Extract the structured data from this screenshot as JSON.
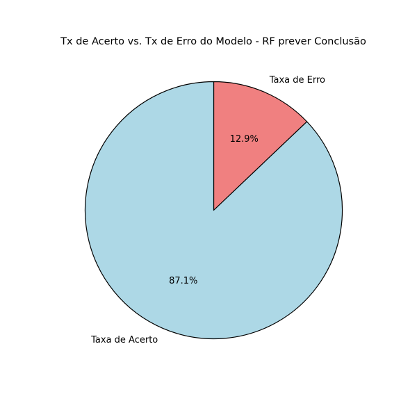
{
  "chart_data": {
    "type": "pie",
    "title": "Tx de Acerto vs. Tx de Erro do Modelo - RF prever Conclusão",
    "start_angle_deg": 90,
    "direction": "clockwise",
    "edge_color": "#000000",
    "slices": [
      {
        "label": "Taxa de Erro",
        "value": 12.9,
        "pct_label": "12.9%",
        "color": "#f08080"
      },
      {
        "label": "Taxa de Acerto",
        "value": 87.1,
        "pct_label": "87.1%",
        "color": "#add8e6"
      }
    ]
  }
}
